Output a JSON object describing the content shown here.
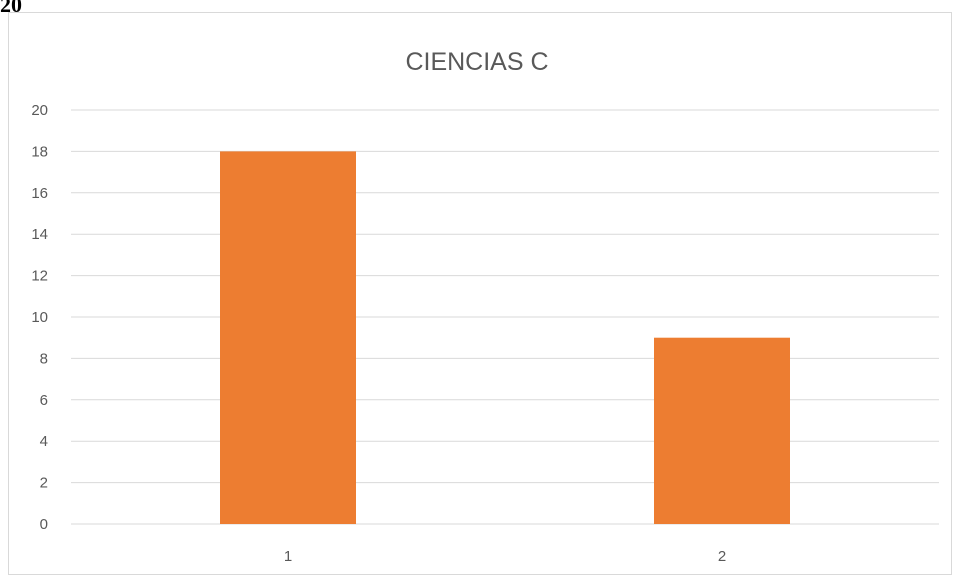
{
  "corner_text": "20",
  "chart_data": {
    "type": "bar",
    "title": "CIENCIAS C",
    "categories": [
      "1",
      "2"
    ],
    "values": [
      18,
      9
    ],
    "xlabel": "",
    "ylabel": "",
    "ylim": [
      0,
      20
    ],
    "yticks": [
      "0",
      "2",
      "4",
      "6",
      "8",
      "10",
      "12",
      "14",
      "16",
      "18",
      "20"
    ],
    "grid": true,
    "legend": "none",
    "colors": {
      "bar": "#ed7d31",
      "grid": "#d9d9d9",
      "text": "#595959"
    }
  }
}
